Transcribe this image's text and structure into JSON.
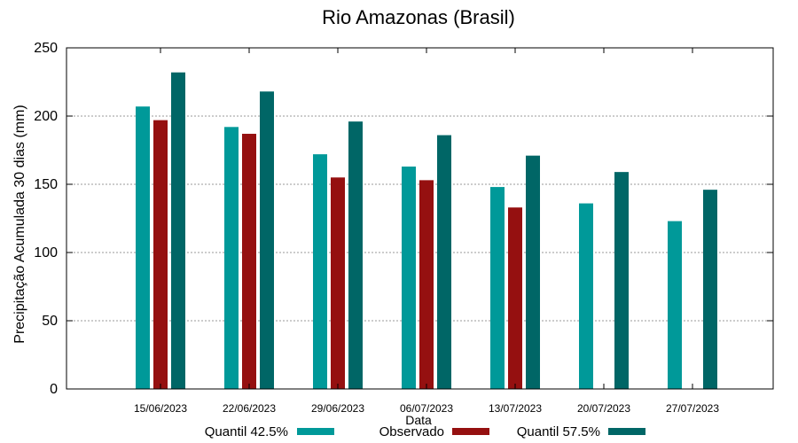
{
  "chart_data": {
    "type": "bar",
    "title": "Rio Amazonas (Brasil)",
    "xlabel": "Data",
    "ylabel": "Precipitação Acumulada 30 dias (mm)",
    "ylim": [
      0,
      250
    ],
    "yticks": [
      "0",
      "50",
      "100",
      "150",
      "200",
      "250"
    ],
    "grid": true,
    "legend_position": "bottom",
    "categories": [
      "15/06/2023",
      "22/06/2023",
      "29/06/2023",
      "06/07/2023",
      "13/07/2023",
      "20/07/2023",
      "27/07/2023"
    ],
    "series": [
      {
        "name": "Quantil 42.5%",
        "color": "#009999",
        "values": [
          207,
          192,
          172,
          163,
          148,
          136,
          123
        ]
      },
      {
        "name": "Observado",
        "color": "#951010",
        "values": [
          197,
          187,
          155,
          153,
          133,
          null,
          null
        ]
      },
      {
        "name": "Quantil 57.5%",
        "color": "#006666",
        "values": [
          232,
          218,
          196,
          186,
          171,
          159,
          146
        ]
      }
    ]
  }
}
